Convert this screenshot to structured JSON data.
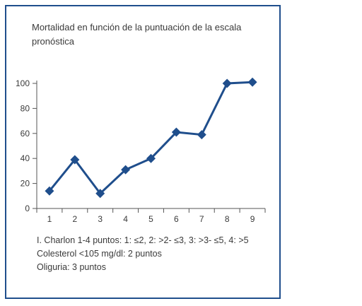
{
  "chart_data": {
    "type": "line",
    "title": "Mortalidad en función de la puntuación de la escala pronóstica",
    "x": [
      1,
      2,
      3,
      4,
      5,
      6,
      7,
      8,
      9
    ],
    "categories": [
      "1",
      "2",
      "3",
      "4",
      "5",
      "6",
      "7",
      "8",
      "9"
    ],
    "series": [
      {
        "values": [
          14,
          39,
          12,
          31,
          40,
          61,
          59,
          100,
          101
        ]
      }
    ],
    "yticks": [
      "0",
      "20",
      "40",
      "60",
      "80",
      "100"
    ],
    "ylim": [
      0,
      100
    ],
    "xlim": [
      0.5,
      9.5
    ],
    "grid": false,
    "line_color": "#1f4e8c",
    "marker": "diamond"
  },
  "footnotes": [
    "I. Charlon 1-4 puntos: 1: ≤2, 2: >2- ≤3, 3: >3- ≤5, 4: >5",
    "Colesterol <105 mg/dl: 2 puntos",
    "Oliguria: 3 puntos"
  ],
  "colors": {
    "frame": "#1f4e8c",
    "axis": "#555555",
    "text": "#3a3a3a"
  }
}
